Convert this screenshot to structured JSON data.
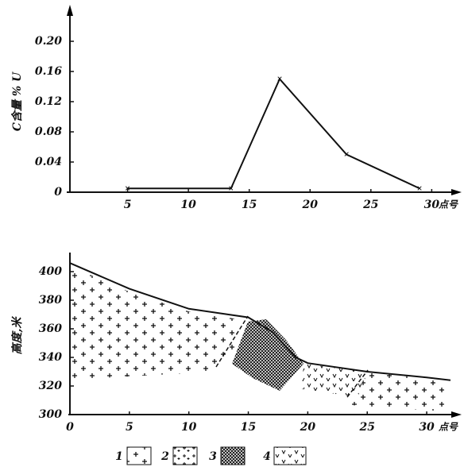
{
  "chart_data": [
    {
      "type": "line",
      "ylabel": "C含量 % U",
      "xlabel": "点号",
      "x": [
        5,
        13.5,
        17.5,
        23,
        29
      ],
      "values": [
        0.005,
        0.005,
        0.15,
        0.05,
        0.005
      ],
      "color": "#111111",
      "xlim": [
        0,
        32
      ],
      "xticks": [
        5,
        10,
        15,
        20,
        25,
        30
      ],
      "ylim": [
        0,
        0.24
      ],
      "yticks": [
        0,
        0.04,
        0.08,
        0.12,
        0.16,
        {
          "value": 0.2,
          "label": "0.20"
        }
      ]
    },
    {
      "type": "profile",
      "ylabel": "高度,米",
      "xlabel": "点号",
      "x": [
        0,
        5,
        10,
        15,
        17,
        19,
        20,
        25,
        30,
        32
      ],
      "values": [
        406,
        388,
        374,
        368,
        358,
        340,
        336,
        330,
        326,
        324
      ],
      "color": "#111111",
      "xlim": [
        0,
        32
      ],
      "xticks": [
        0,
        5,
        10,
        15,
        20,
        25,
        30
      ],
      "ylim": [
        300,
        410
      ],
      "yticks": [
        300,
        320,
        340,
        360,
        380,
        400
      ],
      "legend": [
        "1",
        "2",
        "3",
        "4"
      ]
    }
  ]
}
